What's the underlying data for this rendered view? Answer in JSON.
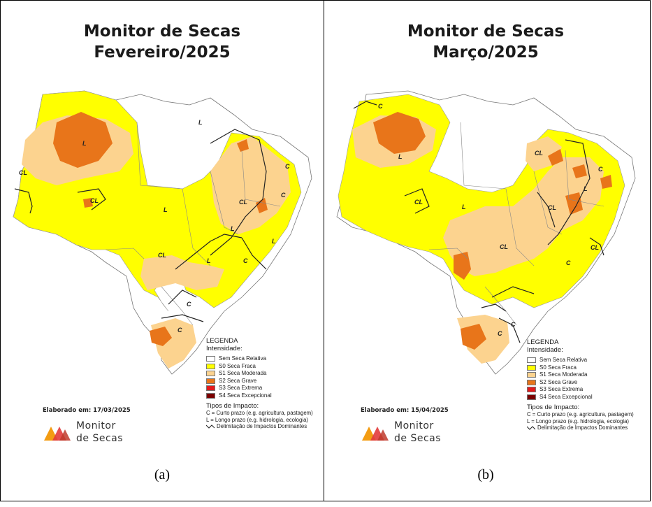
{
  "panels": [
    {
      "title_line1": "Monitor de Secas",
      "title_line2": "Fevereiro/2025",
      "elaborated": "Elaborado em: 17/03/2025",
      "caption": "(a)",
      "impact_labels": [
        "L",
        "CL",
        "CL",
        "L",
        "L",
        "C",
        "C",
        "CL",
        "C",
        "L",
        "CL",
        "L",
        "C",
        "L",
        "C"
      ]
    },
    {
      "title_line1": "Monitor de Secas",
      "title_line2": "Março/2025",
      "elaborated": "Elaborado em: 15/04/2025",
      "caption": "(b)",
      "impact_labels": [
        "C",
        "L",
        "CL",
        "L",
        "CL",
        "CL",
        "C",
        "L",
        "CL",
        "C",
        "CL",
        "C",
        "C"
      ]
    }
  ],
  "legend": {
    "title": "LEGENDA",
    "intensity_label": "Intensidade:",
    "items": [
      {
        "label": "Sem Seca Relativa",
        "color": "#ffffff"
      },
      {
        "label": "S0 Seca Fraca",
        "color": "#ffff00"
      },
      {
        "label": "S1 Seca Moderada",
        "color": "#fcd38f"
      },
      {
        "label": "S2 Seca Grave",
        "color": "#e8751a"
      },
      {
        "label": "S3 Seca Extrema",
        "color": "#e31a1c"
      },
      {
        "label": "S4 Seca Excepcional",
        "color": "#7b0000"
      }
    ],
    "impact_title": "Tipos de Impacto:",
    "impact_c": "C = Curto prazo (e.g. agricultura, pastagem)",
    "impact_l": "L = Longo prazo (e.g. hidrologia, ecologia)",
    "delimitation": "Delimitação de Impactos Dominantes"
  },
  "logo": {
    "line1": "Monitor",
    "line2": "de Secas",
    "colors": [
      "#f39c12",
      "#e23b3b",
      "#c0392b"
    ]
  }
}
